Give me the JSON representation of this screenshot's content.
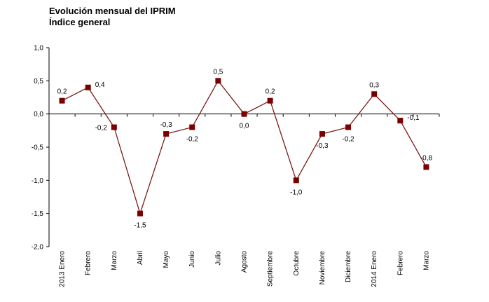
{
  "chart_data": {
    "type": "line",
    "title": "Evolución mensual del IPRIM",
    "subtitle": "Índice general",
    "categories": [
      "2013 Enero",
      "Febrero",
      "Marzo",
      "Abril",
      "Mayo",
      "Junio",
      "Julio",
      "Agosto",
      "Septiembre",
      "Octubre",
      "Noviembre",
      "Diciembre",
      "2014 Enero",
      "Febrero",
      "Marzo"
    ],
    "values": [
      0.2,
      0.4,
      -0.2,
      -1.5,
      -0.3,
      -0.2,
      0.5,
      0.0,
      0.2,
      -1.0,
      -0.3,
      -0.2,
      0.3,
      -0.1,
      -0.8
    ],
    "data_labels": [
      "0,2",
      "0,4",
      "-0,2",
      "-1,5",
      "-0,3",
      "-0,2",
      "0,5",
      "0,0",
      "0,2",
      "-1,0",
      "-0,3",
      "-0,2",
      "0,3",
      "-0,1",
      "-0,8"
    ],
    "ylim": [
      -2.0,
      1.0
    ],
    "yticks": [
      1.0,
      0.5,
      0.0,
      -0.5,
      -1.0,
      -1.5,
      -2.0
    ],
    "ytick_labels": [
      "1,0",
      "0,5",
      "0,0",
      "-0,5",
      "-1,0",
      "-1,5",
      "-2,0"
    ],
    "label_positions": [
      "above",
      "right",
      "left",
      "below",
      "above",
      "below",
      "above",
      "below",
      "above",
      "below",
      "below",
      "below",
      "above",
      "right",
      "above"
    ],
    "xlabel": "",
    "ylabel": "",
    "grid": false,
    "legend": false,
    "line_color": "#7a1a1a",
    "marker_color": "#7a0000"
  }
}
